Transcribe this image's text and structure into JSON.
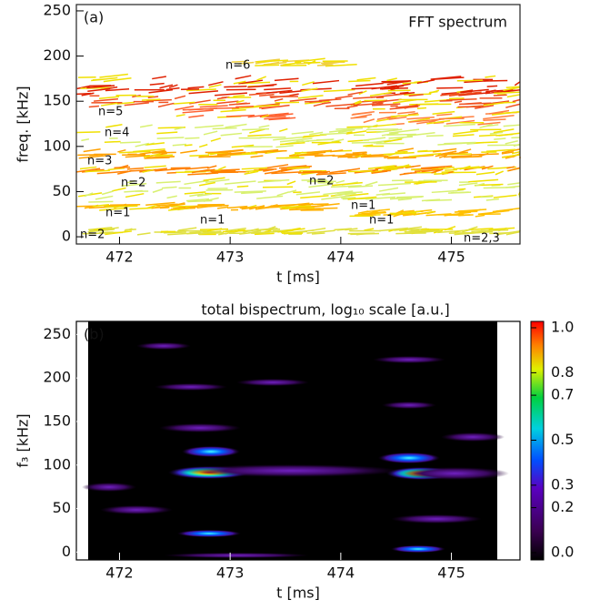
{
  "chart_data": [
    {
      "type": "contour",
      "panel_label": "(a)",
      "title": "FFT spectrum",
      "xlabel": "t  [ms]",
      "ylabel": "freq. [kHz]",
      "xlim": [
        471.61,
        475.62
      ],
      "xticks": [
        472,
        473,
        474,
        475
      ],
      "ylim": [
        -8,
        257
      ],
      "yticks": [
        0,
        50,
        100,
        150,
        200,
        250
      ],
      "annotations": [
        "n=6",
        "n=5",
        "n=4",
        "n=3",
        "n=2",
        "n=2",
        "n=1",
        "n=1",
        "n=1",
        "n=1",
        "n=2",
        "n=2,3"
      ]
    },
    {
      "type": "heatmap",
      "panel_label": "(b)",
      "title": "total bispectrum, log₁₀ scale [a.u.]",
      "xlabel": "t  [ms]",
      "ylabel": "f₃ [kHz]",
      "xlim": [
        471.61,
        475.62
      ],
      "xticks": [
        472,
        473,
        474,
        475
      ],
      "ylim": [
        -9,
        265
      ],
      "yticks": [
        0,
        50,
        100,
        150,
        200,
        250
      ],
      "clim": [
        0,
        1
      ],
      "cticks": [
        {
          "value": 1.0,
          "label": "1.0"
        },
        {
          "value": 0.8,
          "label": "0.8"
        },
        {
          "value": 0.7,
          "label": "0.7"
        },
        {
          "value": 0.5,
          "label": "0.5"
        },
        {
          "value": 0.3,
          "label": "0.3"
        },
        {
          "value": 0.2,
          "label": "0.2"
        },
        {
          "value": 0.0,
          "label": "0.0"
        }
      ]
    }
  ]
}
